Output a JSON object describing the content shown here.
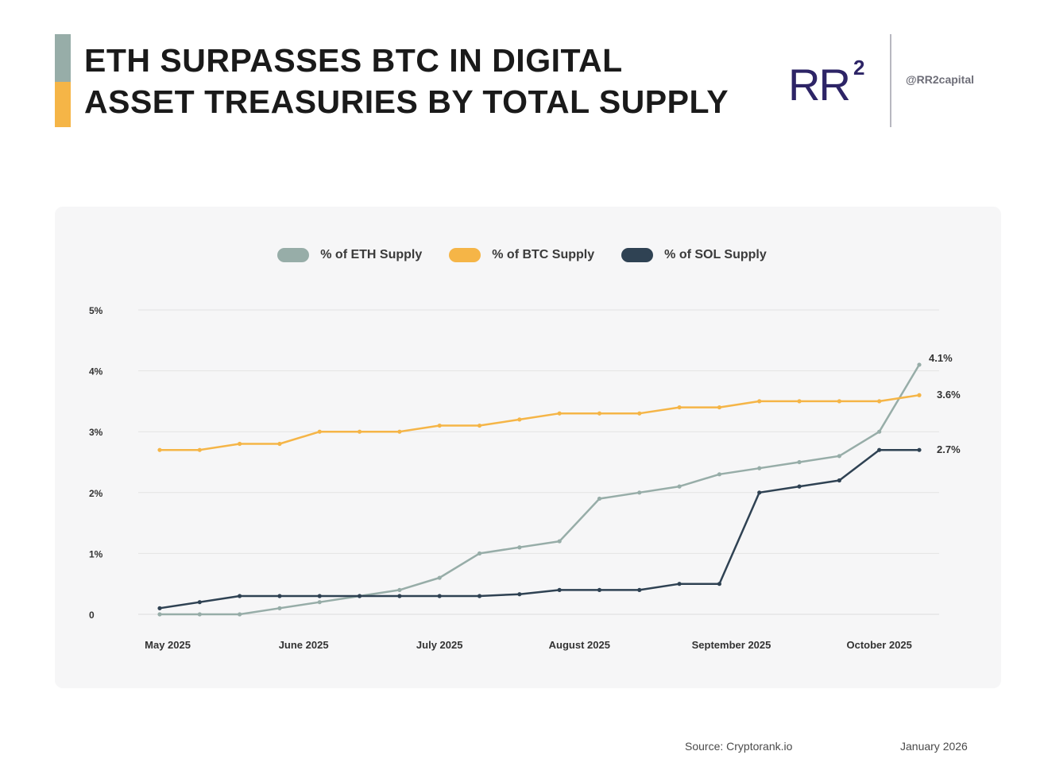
{
  "header": {
    "title_line1": "ETH SURPASSES BTC IN DIGITAL",
    "title_line2": "ASSET TREASURIES BY TOTAL SUPPLY",
    "handle": "@RR2capital",
    "logo_text": "RR",
    "logo_sup": "2"
  },
  "colors": {
    "eth": "#97ada8",
    "btc": "#f5b547",
    "sol": "#2f4253",
    "logo": "#2d2466",
    "accent_top": "#97ada8",
    "accent_bottom": "#f5b547"
  },
  "footer": {
    "source": "Source: Cryptorank.io",
    "date": "January 2026"
  },
  "chart_data": {
    "type": "line",
    "title": "",
    "xlabel": "",
    "ylabel": "",
    "ylim": [
      0,
      5
    ],
    "y_ticks": [
      0,
      1,
      2,
      3,
      4,
      5
    ],
    "y_tick_labels": [
      "0",
      "1%",
      "2%",
      "3%",
      "4%",
      "5%"
    ],
    "x_tick_labels": [
      "May 2025",
      "June 2025",
      "July 2025",
      "August 2025",
      "September 2025",
      "October 2025"
    ],
    "x_tick_index": [
      0.2,
      3.6,
      7.0,
      10.5,
      14.3,
      18.0
    ],
    "x_count": 20,
    "grid": true,
    "legend_position": "top-center",
    "series": [
      {
        "name": "% of ETH Supply",
        "color_key": "eth",
        "values": [
          0,
          0,
          0,
          0.1,
          0.2,
          0.3,
          0.4,
          0.6,
          1.0,
          1.1,
          1.2,
          1.9,
          2.0,
          2.1,
          2.3,
          2.4,
          2.5,
          2.6,
          3.0,
          4.1
        ],
        "end_label": "4.1%"
      },
      {
        "name": "% of BTC Supply",
        "color_key": "btc",
        "values": [
          2.7,
          2.7,
          2.8,
          2.8,
          3.0,
          3.0,
          3.0,
          3.1,
          3.1,
          3.2,
          3.3,
          3.3,
          3.3,
          3.4,
          3.4,
          3.5,
          3.5,
          3.5,
          3.5,
          3.6
        ],
        "end_label": "3.6%"
      },
      {
        "name": "% of SOL Supply",
        "color_key": "sol",
        "values": [
          0.1,
          0.2,
          0.3,
          0.3,
          0.3,
          0.3,
          0.3,
          0.3,
          0.3,
          0.33,
          0.4,
          0.4,
          0.4,
          0.5,
          0.5,
          2.0,
          2.1,
          2.2,
          2.7,
          2.7
        ],
        "end_label": "2.7%"
      }
    ]
  }
}
